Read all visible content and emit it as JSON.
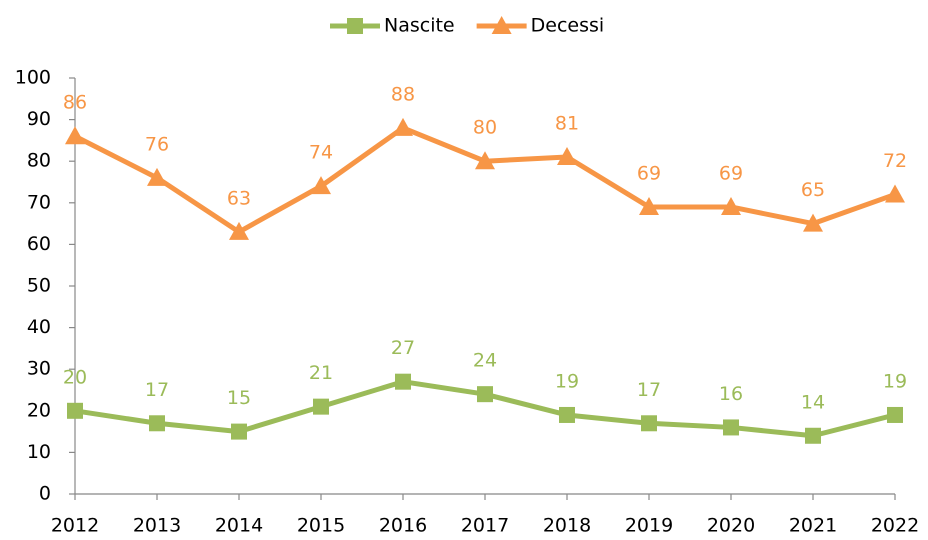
{
  "chart_data": {
    "type": "line",
    "categories": [
      "2012",
      "2013",
      "2014",
      "2015",
      "2016",
      "2017",
      "2018",
      "2019",
      "2020",
      "2021",
      "2022"
    ],
    "series": [
      {
        "name": "Nascite",
        "color": "#9bbb59",
        "marker": "square",
        "values": [
          20,
          17,
          15,
          21,
          27,
          24,
          19,
          17,
          16,
          14,
          19
        ]
      },
      {
        "name": "Decessi",
        "color": "#f79646",
        "marker": "triangle",
        "values": [
          86,
          76,
          63,
          74,
          88,
          80,
          81,
          69,
          69,
          65,
          72
        ]
      }
    ],
    "ylim": [
      0,
      100
    ],
    "yticks": [
      0,
      10,
      20,
      30,
      40,
      50,
      60,
      70,
      80,
      90,
      100
    ],
    "grid": false,
    "legend": "top",
    "data_labels": true
  }
}
